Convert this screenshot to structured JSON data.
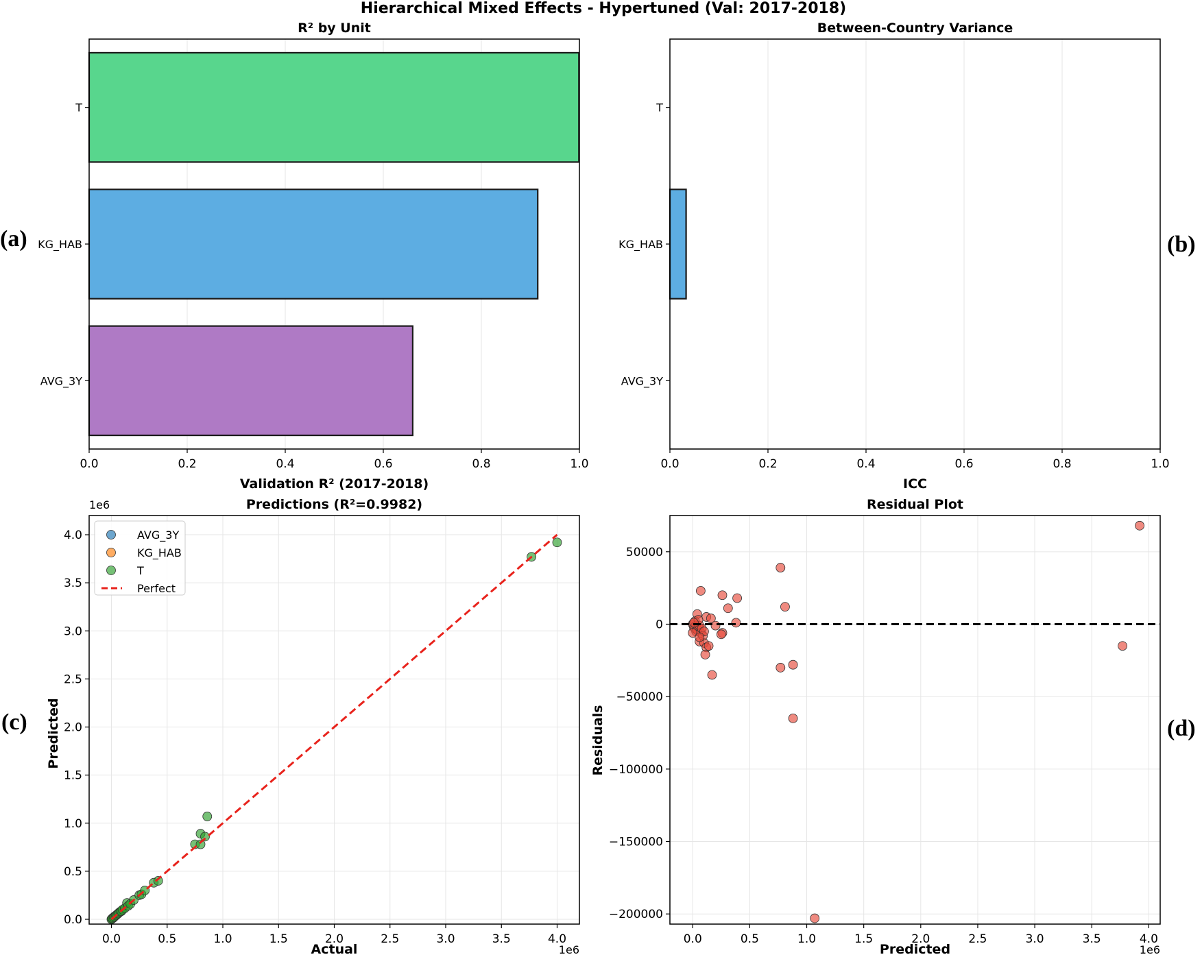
{
  "figure": {
    "title": "Hierarchical Mixed Effects - Hypertuned (Val: 2017-2018)",
    "panel_labels": [
      "(a)",
      "(b)",
      "(c)",
      "(d)"
    ]
  },
  "colors": {
    "T": "#58d68d",
    "KG_HAB": "#5dade2",
    "AVG_3Y": "#af7ac5",
    "scatter_AVG_3Y": "#1f77b4",
    "scatter_KG_HAB": "#ff7f0e",
    "scatter_T": "#2ca02c",
    "perfect_line": "#e8231c",
    "residual_points": "#e74c3c",
    "grid": "#e6e6e6"
  },
  "chart_data": [
    {
      "id": "a",
      "type": "bar",
      "orientation": "horizontal",
      "title": "R² by Unit",
      "xlabel": "Validation R² (2017-2018)",
      "ylabel": "",
      "categories": [
        "T",
        "KG_HAB",
        "AVG_3Y"
      ],
      "values": [
        0.999,
        0.915,
        0.66
      ],
      "xlim": [
        0.0,
        1.0
      ],
      "xticks": [
        0.0,
        0.2,
        0.4,
        0.6,
        0.8,
        1.0
      ],
      "xtick_labels": [
        "0.0",
        "0.2",
        "0.4",
        "0.6",
        "0.8",
        "1.0"
      ],
      "grid": "x"
    },
    {
      "id": "b",
      "type": "bar",
      "orientation": "horizontal",
      "title": "Between-Country Variance",
      "xlabel": "ICC",
      "ylabel": "",
      "categories": [
        "T",
        "KG_HAB",
        "AVG_3Y"
      ],
      "values": [
        0.0,
        0.033,
        0.0
      ],
      "xlim": [
        0.0,
        1.0
      ],
      "xticks": [
        0.0,
        0.2,
        0.4,
        0.6,
        0.8,
        1.0
      ],
      "xtick_labels": [
        "0.0",
        "0.2",
        "0.4",
        "0.6",
        "0.8",
        "1.0"
      ],
      "grid": "x"
    },
    {
      "id": "c",
      "type": "scatter",
      "title": "Predictions (R²=0.9982)",
      "xlabel": "Actual",
      "ylabel": "Predicted",
      "x_offset_label": "1e6",
      "y_offset_label": "1e6",
      "xlim": [
        -0.2,
        4.2
      ],
      "ylim": [
        -0.05,
        4.2
      ],
      "xticks": [
        0.0,
        0.5,
        1.0,
        1.5,
        2.0,
        2.5,
        3.0,
        3.5,
        4.0
      ],
      "xtick_labels": [
        "0.0",
        "0.5",
        "1.0",
        "1.5",
        "2.0",
        "2.5",
        "3.0",
        "3.5",
        "4.0"
      ],
      "yticks": [
        0.0,
        0.5,
        1.0,
        1.5,
        2.0,
        2.5,
        3.0,
        3.5,
        4.0
      ],
      "ytick_labels": [
        "0.0",
        "0.5",
        "1.0",
        "1.5",
        "2.0",
        "2.5",
        "3.0",
        "3.5",
        "4.0"
      ],
      "legend": [
        "AVG_3Y",
        "KG_HAB",
        "T",
        "Perfect"
      ],
      "legend_position": "upper-left",
      "series": [
        {
          "name": "AVG_3Y",
          "points": [
            [
              0.005,
              0.004
            ],
            [
              0.01,
              0.012
            ],
            [
              0.02,
              0.018
            ]
          ]
        },
        {
          "name": "KG_HAB",
          "points": [
            [
              0.008,
              0.009
            ],
            [
              0.015,
              0.014
            ],
            [
              0.025,
              0.027
            ]
          ]
        },
        {
          "name": "T",
          "points": [
            [
              0.0,
              0.0
            ],
            [
              0.01,
              0.01
            ],
            [
              0.02,
              0.02
            ],
            [
              0.03,
              0.03
            ],
            [
              0.04,
              0.04
            ],
            [
              0.05,
              0.05
            ],
            [
              0.06,
              0.06
            ],
            [
              0.07,
              0.07
            ],
            [
              0.08,
              0.08
            ],
            [
              0.09,
              0.085
            ],
            [
              0.1,
              0.1
            ],
            [
              0.12,
              0.115
            ],
            [
              0.14,
              0.17
            ],
            [
              0.15,
              0.14
            ],
            [
              0.17,
              0.16
            ],
            [
              0.2,
              0.2
            ],
            [
              0.25,
              0.25
            ],
            [
              0.27,
              0.26
            ],
            [
              0.3,
              0.3
            ],
            [
              0.38,
              0.38
            ],
            [
              0.42,
              0.4
            ],
            [
              0.75,
              0.78
            ],
            [
              0.8,
              0.78
            ],
            [
              0.8,
              0.89
            ],
            [
              0.84,
              0.86
            ],
            [
              0.86,
              1.07
            ],
            [
              3.77,
              3.77
            ],
            [
              4.0,
              3.92
            ]
          ]
        }
      ],
      "perfect_line": [
        [
          0.0,
          0.0
        ],
        [
          4.0,
          4.0
        ]
      ]
    },
    {
      "id": "d",
      "type": "scatter",
      "title": "Residual Plot",
      "xlabel": "Predicted",
      "ylabel": "Residuals",
      "x_offset_label": "1e6",
      "xlim": [
        -0.2,
        4.1
      ],
      "ylim": [
        -207000,
        75000
      ],
      "xticks": [
        0.0,
        0.5,
        1.0,
        1.5,
        2.0,
        2.5,
        3.0,
        3.5,
        4.0
      ],
      "xtick_labels": [
        "0.0",
        "0.5",
        "1.0",
        "1.5",
        "2.0",
        "2.5",
        "3.0",
        "3.5",
        "4.0"
      ],
      "yticks": [
        50000,
        0,
        -50000,
        -100000,
        -150000,
        -200000
      ],
      "ytick_labels": [
        "50000",
        "0",
        "−50000",
        "−100000",
        "−150000",
        "−200000"
      ],
      "zero_line": 0,
      "points": [
        [
          3.92,
          68000
        ],
        [
          3.77,
          -15000
        ],
        [
          1.07,
          -203000
        ],
        [
          0.77,
          39000
        ],
        [
          0.77,
          -30000
        ],
        [
          0.81,
          12000
        ],
        [
          0.88,
          -28000
        ],
        [
          0.88,
          -65000
        ],
        [
          0.07,
          23000
        ],
        [
          0.26,
          20000
        ],
        [
          0.39,
          18000
        ],
        [
          0.31,
          11000
        ],
        [
          0.04,
          7000
        ],
        [
          0.12,
          5000
        ],
        [
          0.16,
          4000
        ],
        [
          0.38,
          1000
        ],
        [
          0.2,
          -1000
        ],
        [
          0.26,
          -6000
        ],
        [
          0.25,
          -7000
        ],
        [
          0.06,
          -12000
        ],
        [
          0.1,
          -13000
        ],
        [
          0.12,
          -16000
        ],
        [
          0.11,
          -21000
        ],
        [
          0.17,
          -35000
        ],
        [
          0.0,
          0
        ],
        [
          0.01,
          -2000
        ],
        [
          0.02,
          -3000
        ],
        [
          0.02,
          2000
        ],
        [
          0.03,
          -1000
        ],
        [
          0.03,
          -5000
        ],
        [
          0.04,
          -4000
        ],
        [
          0.05,
          -2000
        ],
        [
          0.06,
          -1000
        ],
        [
          0.07,
          -6000
        ],
        [
          0.08,
          -3000
        ],
        [
          0.09,
          -8000
        ],
        [
          0.1,
          -5000
        ],
        [
          0.05,
          3000
        ],
        [
          0.0,
          -6000
        ],
        [
          0.01,
          1000
        ],
        [
          0.06,
          -9000
        ],
        [
          0.14,
          -15000
        ]
      ]
    }
  ]
}
